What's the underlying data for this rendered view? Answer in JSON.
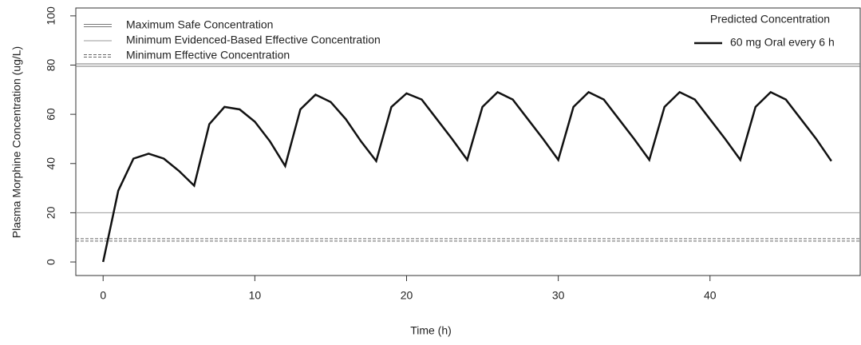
{
  "chart_data": {
    "type": "line",
    "x_label": "Time (h)",
    "y_label": "Plasma Morphine Concentration (ug/L)",
    "x": [
      0,
      1,
      2,
      3,
      4,
      5,
      6,
      7,
      8,
      9,
      10,
      11,
      12,
      13,
      14,
      15,
      16,
      17,
      18,
      19,
      20,
      21,
      22,
      23,
      24,
      25,
      26,
      27,
      28,
      29,
      30,
      31,
      32,
      33,
      34,
      35,
      36,
      37,
      38,
      39,
      40,
      41,
      42,
      43,
      44,
      45,
      46,
      47,
      48
    ],
    "series": [
      {
        "name": "60 mg Oral every 6 h",
        "color": "#111111",
        "values": [
          0,
          29,
          42,
          44,
          42,
          37,
          31,
          56,
          63,
          62,
          57,
          49,
          39,
          62,
          68,
          65,
          58,
          49,
          41,
          63,
          68.5,
          66,
          58,
          50,
          41.5,
          63,
          69,
          66,
          58,
          50,
          41.5,
          63,
          69,
          66,
          58,
          50,
          41.5,
          63,
          69,
          66,
          58,
          50,
          41.5,
          63,
          69,
          66,
          58,
          50,
          41
        ]
      }
    ],
    "legend_title": "Predicted Concentration",
    "reference_lines": [
      {
        "name": "Maximum Safe Concentration",
        "value": 80,
        "color": "#777777",
        "style": "double"
      },
      {
        "name": "Minimum Evidenced-Based Effective Concentration",
        "value": 20,
        "color": "#999999",
        "style": "solid"
      },
      {
        "name": "Minimum Effective Concentration",
        "value": 9,
        "color": "#666666",
        "style": "dashed"
      }
    ],
    "xlim": [
      -1.8,
      49.9
    ],
    "ylim": [
      -5.5,
      103.2
    ],
    "xticks": [
      0,
      10,
      20,
      30,
      40
    ],
    "yticks": [
      0,
      20,
      40,
      60,
      80,
      100
    ]
  }
}
